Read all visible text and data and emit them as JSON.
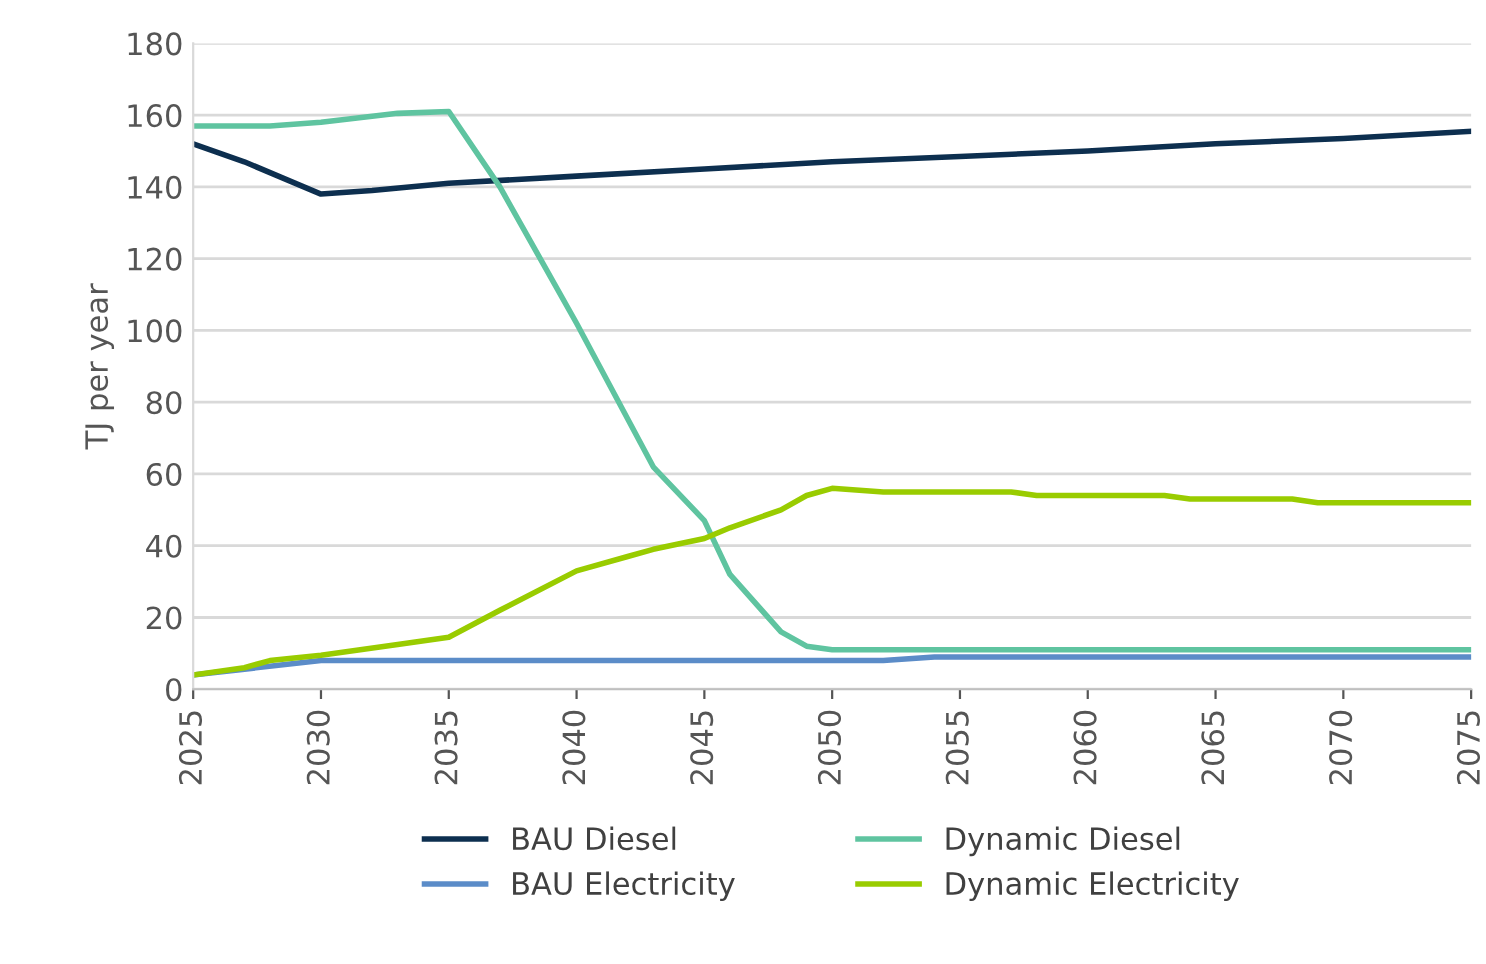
{
  "chart_data": {
    "type": "line",
    "ylabel": "TJ per year",
    "xlim": [
      2025,
      2075
    ],
    "xticks": [
      2025,
      2030,
      2035,
      2040,
      2045,
      2050,
      2055,
      2060,
      2065,
      2070,
      2075
    ],
    "ylim": [
      0,
      180
    ],
    "yticks": [
      0,
      20,
      40,
      60,
      80,
      100,
      120,
      140,
      160,
      180
    ],
    "grid": "y",
    "legend": "bottom",
    "marker": "none",
    "line_style": "solid",
    "series": [
      {
        "name": "BAU Diesel",
        "color": "#0d2f4f",
        "x": [
          2025,
          2027,
          2030,
          2032,
          2035,
          2040,
          2045,
          2050,
          2055,
          2060,
          2065,
          2070,
          2075
        ],
        "values": [
          152,
          147,
          138,
          139,
          141,
          143,
          145,
          147,
          148.5,
          150,
          152,
          153.5,
          155.5
        ]
      },
      {
        "name": "BAU Electricity",
        "color": "#5b8cc8",
        "x": [
          2025,
          2030,
          2052,
          2054,
          2075
        ],
        "values": [
          4,
          8,
          8,
          9,
          9
        ]
      },
      {
        "name": "Dynamic Diesel",
        "color": "#5fc4a0",
        "x": [
          2025,
          2028,
          2030,
          2033,
          2035,
          2037,
          2040,
          2043,
          2045,
          2046,
          2048,
          2049,
          2050,
          2075
        ],
        "values": [
          157,
          157,
          158,
          160.5,
          161,
          140,
          102,
          62,
          47,
          32,
          16,
          12,
          11,
          11
        ]
      },
      {
        "name": "Dynamic Electricity",
        "color": "#99cc00",
        "x": [
          2025,
          2027,
          2028,
          2030,
          2033,
          2035,
          2037,
          2040,
          2042,
          2043,
          2045,
          2046,
          2048,
          2049,
          2050,
          2052,
          2057,
          2058,
          2063,
          2064,
          2068,
          2069,
          2075
        ],
        "values": [
          4,
          6,
          8,
          9.5,
          12.5,
          14.5,
          22,
          33,
          37,
          39,
          42,
          45,
          50,
          54,
          56,
          55,
          55,
          54,
          54,
          53,
          53,
          52,
          52
        ]
      }
    ]
  }
}
